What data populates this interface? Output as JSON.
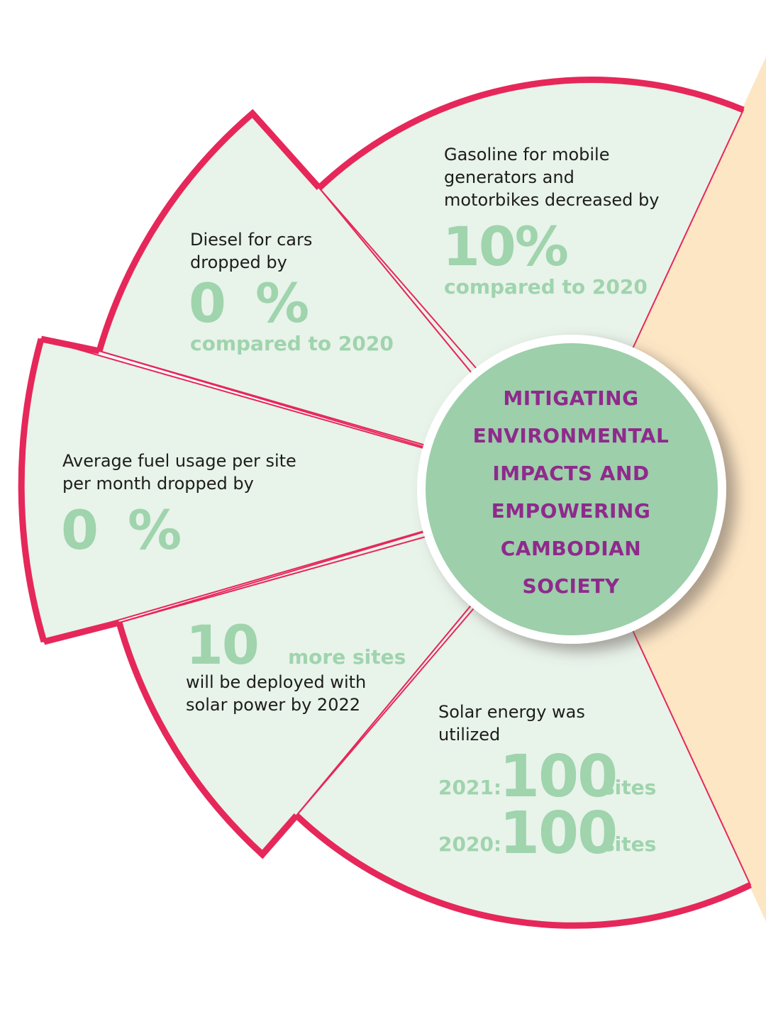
{
  "colors": {
    "panel_fill": "#e8f3ea",
    "border": "#e6275a",
    "accent_green": "#9fd4ad",
    "center_fill": "#9ccfaa",
    "center_text": "#8f2a8c",
    "side_bg": "#fde6c4"
  },
  "center": {
    "lines": [
      "MITIGATING",
      "ENVIRONMENTAL",
      "IMPACTS AND",
      "EMPOWERING",
      "CAMBODIAN",
      "SOCIETY"
    ]
  },
  "gasoline": {
    "lines": [
      "Gasoline for mobile",
      "generators and",
      "motorbikes decreased by"
    ],
    "value": "10%",
    "note": "compared to 2020"
  },
  "diesel": {
    "lines": [
      "Diesel for cars",
      "dropped by"
    ],
    "value": "0",
    "unit": "%",
    "note": "compared to 2020"
  },
  "fuel_usage": {
    "lines": [
      "Average fuel usage per site",
      "per month dropped by"
    ],
    "value": "0",
    "unit": "%"
  },
  "deployment": {
    "value": "10",
    "unit": "more sites",
    "lines": [
      "will be deployed with",
      "solar power by 2022"
    ]
  },
  "solar": {
    "lines": [
      "Solar energy was",
      "utilized"
    ],
    "rows": [
      {
        "year": "2021:",
        "value": "100",
        "unit": "sites"
      },
      {
        "year": "2020:",
        "value": "100",
        "unit": "sites"
      }
    ]
  }
}
